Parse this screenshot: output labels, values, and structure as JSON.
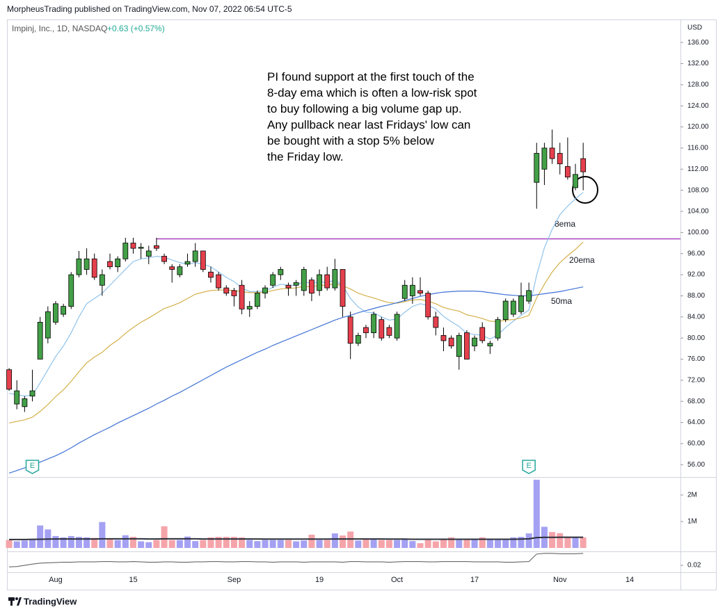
{
  "header": {
    "publisher": "MorpheusTrading published on TradingView.com, Nov 07, 2022 06:54 UTC-5"
  },
  "footer": {
    "brand": "TradingView"
  },
  "chart_data": {
    "type": "candlestick",
    "symbol": "Impinj, Inc., 1D, NASDAQ",
    "change": "+0.63 (+0.57%)",
    "change_color": "#22ab94",
    "currency": "USD",
    "annotation": [
      "PI found support at the first touch of the",
      "8-day ema which is often a low-risk spot",
      "to buy following a big volume gap up.",
      "Any pullback near last Fridays' low can",
      "be bought with a stop 5% below",
      "the Friday low."
    ],
    "categories": [
      null,
      null,
      null,
      null,
      null,
      null,
      "Aug",
      null,
      null,
      null,
      null,
      null,
      null,
      null,
      null,
      null,
      "15",
      null,
      null,
      null,
      null,
      null,
      null,
      null,
      null,
      null,
      null,
      null,
      null,
      "Sep",
      null,
      null,
      null,
      null,
      null,
      null,
      null,
      null,
      null,
      null,
      "19",
      null,
      null,
      null,
      null,
      null,
      null,
      null,
      null,
      null,
      "Oct",
      null,
      null,
      null,
      null,
      null,
      null,
      null,
      null,
      null,
      "17",
      null,
      null,
      null,
      null,
      null,
      null,
      null,
      null,
      null,
      null,
      "Nov",
      null,
      null,
      null,
      null,
      null,
      null,
      null,
      null,
      "14",
      null,
      null,
      null,
      null,
      null,
      null
    ],
    "open": [
      74,
      67.5,
      67,
      69,
      76,
      80,
      83,
      84.5,
      86,
      92,
      93,
      95,
      90,
      94.5,
      93.5,
      95,
      98,
      97,
      95.5,
      97.5,
      95.5,
      93.5,
      92,
      94,
      94.5,
      96.5,
      92.5,
      92,
      89.5,
      89,
      90,
      85.5,
      86,
      88.5,
      90,
      92,
      90,
      90,
      89,
      91,
      89,
      92,
      89.5,
      93,
      84,
      79,
      82,
      81,
      83.5,
      82,
      80,
      87.5,
      88,
      89,
      88.5,
      84,
      80.5,
      80,
      76.5,
      81,
      78.5,
      82,
      78.5,
      80,
      83.5,
      84.5,
      85,
      87,
      109.5,
      112,
      116,
      115,
      112.5,
      108.5,
      114,
      null,
      null,
      null,
      null,
      null,
      null,
      null,
      null,
      null,
      null,
      null,
      null
    ],
    "high": [
      74.3,
      72,
      69,
      74,
      84,
      86,
      87,
      86.5,
      92.5,
      96.5,
      97,
      96,
      93,
      96,
      95.5,
      99,
      99,
      98,
      97.5,
      99,
      96,
      94,
      94,
      96,
      98,
      96.5,
      93.5,
      92.5,
      90,
      89.5,
      91,
      87,
      89,
      90,
      92.5,
      93.5,
      90.5,
      91,
      93.5,
      91.5,
      93,
      93.5,
      95,
      93,
      85,
      81,
      82.5,
      85,
      84,
      82.5,
      85,
      91,
      91.5,
      91.5,
      89,
      85,
      82,
      80.5,
      81,
      81.5,
      80.5,
      83,
      79.5,
      84,
      87.5,
      87.5,
      90.5,
      90.5,
      117,
      117,
      119.5,
      117,
      118,
      113,
      117,
      null,
      null,
      null,
      null,
      null,
      null,
      null,
      null,
      null,
      null,
      null,
      null
    ],
    "low": [
      70,
      66.5,
      66,
      68,
      76,
      79,
      82.5,
      84,
      85.5,
      91.5,
      92,
      91,
      88,
      93,
      92.5,
      94.5,
      96,
      95,
      94,
      96.5,
      94,
      90.5,
      91.5,
      93.5,
      93.5,
      92.5,
      90.5,
      89,
      88,
      86,
      84.5,
      84,
      85.5,
      87.5,
      89.5,
      91,
      88,
      88,
      88,
      87,
      88,
      89,
      89,
      84,
      76,
      78.5,
      80,
      80,
      79.5,
      80,
      79.5,
      87,
      86.5,
      88,
      83.5,
      80.5,
      77.5,
      78,
      74,
      76,
      77.5,
      79,
      77,
      79.5,
      83,
      84,
      84.5,
      86.5,
      104.5,
      109,
      113,
      111,
      110,
      108,
      108,
      null,
      null,
      null,
      null,
      null,
      null,
      null,
      null,
      null,
      null,
      null,
      null
    ],
    "close": [
      70.3,
      70,
      68.5,
      70,
      83,
      85,
      86.5,
      86,
      92,
      95,
      95,
      91.5,
      92,
      93.5,
      95,
      98,
      97,
      97.2,
      96.5,
      97,
      94.5,
      93,
      93.5,
      94.5,
      96.5,
      93,
      91.5,
      89.5,
      88.5,
      88,
      85.5,
      86,
      88.5,
      89.5,
      92,
      93,
      89.5,
      90.5,
      93,
      88.5,
      92,
      89.5,
      93,
      86,
      79,
      80.5,
      81,
      84.5,
      80,
      80.5,
      84.5,
      90,
      90,
      88.5,
      84,
      82,
      79.5,
      78.5,
      80.5,
      76,
      80,
      79.5,
      79,
      83.5,
      87,
      87,
      88,
      89,
      115,
      116,
      114,
      113,
      110.5,
      111,
      111.5,
      null,
      null,
      null,
      null,
      null,
      null,
      null,
      null,
      null,
      null,
      null,
      null
    ],
    "up_color": "#43a047",
    "down_color": "#e5404d",
    "ylim": [
      53.8,
      140.1
    ],
    "yticks": [
      {
        "value": 56,
        "label": "56.00"
      },
      {
        "value": 60,
        "label": "60.00"
      },
      {
        "value": 64,
        "label": "64.00"
      },
      {
        "value": 68,
        "label": "68.00"
      },
      {
        "value": 72,
        "label": "72.00"
      },
      {
        "value": 76,
        "label": "76.00"
      },
      {
        "value": 80,
        "label": "80.00"
      },
      {
        "value": 84,
        "label": "84.00"
      },
      {
        "value": 88,
        "label": "88.00"
      },
      {
        "value": 92,
        "label": "92.00"
      },
      {
        "value": 96,
        "label": "96.00"
      },
      {
        "value": 100,
        "label": "100.00"
      },
      {
        "value": 104,
        "label": "104.00"
      },
      {
        "value": 108,
        "label": "108.00"
      },
      {
        "value": 112,
        "label": "112.00"
      },
      {
        "value": 116,
        "label": "116.00"
      },
      {
        "value": 120,
        "label": "120.00"
      },
      {
        "value": 124,
        "label": "124.00"
      },
      {
        "value": 128,
        "label": "128.00"
      },
      {
        "value": 132,
        "label": "132.00"
      },
      {
        "value": 136,
        "label": "136.00"
      }
    ],
    "lines": [
      {
        "name": "8ema",
        "color": "#8fc3ec",
        "values": [
          69.5,
          69.3,
          69,
          69.2,
          71.5,
          74,
          76.5,
          78.5,
          81,
          84,
          86.5,
          87.5,
          88.5,
          90,
          91.5,
          93,
          94.5,
          95,
          95.2,
          95.5,
          95.3,
          94.8,
          94.3,
          94,
          94.3,
          94,
          93.5,
          92.5,
          91.5,
          90.7,
          89.5,
          88.8,
          88.8,
          89,
          89.6,
          90.2,
          90,
          90,
          90.7,
          90.3,
          90.7,
          90.5,
          91,
          89.9,
          87.5,
          85.9,
          84.9,
          84.8,
          84,
          83.4,
          83.6,
          84.9,
          86,
          86.5,
          86.2,
          85.5,
          84.1,
          83.1,
          82.2,
          80.9,
          80.7,
          80.5,
          79.8,
          80.6,
          82,
          83.2,
          84.3,
          85.3,
          91.9,
          97.1,
          100.6,
          103.4,
          105,
          106.4,
          107.6,
          null,
          null,
          null,
          null,
          null,
          null,
          null,
          null,
          null,
          null,
          null,
          null
        ]
      },
      {
        "name": "20ema",
        "color": "#d4b04a",
        "values": [
          63.9,
          64.2,
          64.5,
          65,
          66.1,
          67.4,
          68.9,
          70.2,
          71.8,
          73.6,
          75.3,
          76.4,
          77.3,
          78.6,
          79.6,
          80.9,
          82,
          83,
          83.8,
          84.7,
          85.6,
          86.1,
          86.7,
          87.5,
          88.3,
          88.7,
          89,
          89.1,
          89.1,
          89,
          88.8,
          88.6,
          88.6,
          88.7,
          89,
          89.3,
          89.4,
          89.5,
          89.8,
          89.7,
          90,
          90,
          90.3,
          89.9,
          89.3,
          88.5,
          88,
          87.6,
          87.1,
          86.7,
          86.6,
          86.9,
          87.2,
          87.3,
          87,
          86.5,
          85.8,
          85.4,
          85.1,
          84.4,
          84.1,
          83.7,
          83.2,
          83.1,
          83.4,
          83.5,
          83.8,
          84.3,
          87.6,
          90.2,
          92.5,
          94.3,
          95.6,
          96.8,
          98.2,
          null,
          null,
          null,
          null,
          null,
          null,
          null,
          null,
          null,
          null,
          null,
          null
        ]
      },
      {
        "name": "50ma",
        "color": "#3f72d6",
        "values": [
          54.4,
          54.9,
          55.4,
          55.9,
          56.5,
          57.1,
          57.7,
          58.4,
          59.2,
          60.1,
          60.9,
          61.7,
          62.4,
          63.1,
          63.9,
          64.6,
          65.3,
          66,
          66.7,
          67.5,
          68.2,
          69,
          69.7,
          70.5,
          71.3,
          72.1,
          72.9,
          73.7,
          74.5,
          75.2,
          75.9,
          76.6,
          77.3,
          77.9,
          78.6,
          79.2,
          79.8,
          80.4,
          81,
          81.6,
          82.2,
          82.8,
          83.4,
          83.9,
          84.3,
          84.8,
          85.2,
          85.6,
          86,
          86.3,
          86.7,
          87.1,
          87.5,
          87.9,
          88.2,
          88.5,
          88.7,
          88.8,
          88.9,
          88.9,
          88.9,
          88.8,
          88.6,
          88.4,
          88.2,
          88.1,
          88,
          88,
          88.2,
          88.4,
          88.6,
          88.8,
          89.1,
          89.4,
          89.7,
          null,
          null,
          null,
          null,
          null,
          null,
          null,
          null,
          null,
          null,
          null,
          null
        ]
      }
    ],
    "level": {
      "value": 98.8,
      "color": "#a840c0",
      "start": 19
    },
    "earnings": {
      "label": "E",
      "at": [
        3,
        67
      ]
    },
    "volume": {
      "up_color": "#a4a1f3",
      "down_color": "#f5a4aa",
      "ylim": [
        -105000,
        2630000
      ],
      "yticks": [
        {
          "value": 1000000,
          "label": "1M"
        },
        {
          "value": 2000000,
          "label": "2M"
        }
      ],
      "values": [
        300000,
        250000,
        280000,
        300000,
        850000,
        700000,
        450000,
        400000,
        450000,
        420000,
        400000,
        380000,
        980000,
        350000,
        300000,
        480000,
        420000,
        250000,
        220000,
        300000,
        820000,
        300000,
        300000,
        430000,
        260000,
        300000,
        400000,
        420000,
        420000,
        420000,
        400000,
        300000,
        260000,
        300000,
        300000,
        300000,
        300000,
        250000,
        280000,
        500000,
        300000,
        300000,
        550000,
        470000,
        620000,
        280000,
        350000,
        350000,
        300000,
        300000,
        300000,
        330000,
        260000,
        180000,
        300000,
        250000,
        330000,
        400000,
        300000,
        350000,
        350000,
        400000,
        350000,
        300000,
        300000,
        400000,
        420000,
        550000,
        2580000,
        800000,
        600000,
        560000,
        430000,
        400000,
        400000,
        null,
        null,
        null,
        null,
        null,
        null,
        null,
        null,
        null,
        null,
        null,
        null
      ],
      "average": {
        "color": "#2a2e39",
        "values": [
          320000,
          320000,
          320000,
          325000,
          330000,
          335000,
          340000,
          340000,
          340000,
          340000,
          340000,
          340000,
          345000,
          345000,
          345000,
          345000,
          345000,
          345000,
          340000,
          340000,
          345000,
          345000,
          345000,
          345000,
          345000,
          340000,
          340000,
          340000,
          340000,
          340000,
          340000,
          340000,
          340000,
          335000,
          335000,
          335000,
          335000,
          335000,
          335000,
          335000,
          335000,
          335000,
          340000,
          340000,
          340000,
          340000,
          340000,
          340000,
          340000,
          335000,
          335000,
          335000,
          330000,
          330000,
          330000,
          330000,
          330000,
          330000,
          330000,
          330000,
          330000,
          330000,
          330000,
          330000,
          330000,
          330000,
          335000,
          345000,
          390000,
          400000,
          400000,
          405000,
          405000,
          405000,
          405000,
          null,
          null,
          null,
          null,
          null,
          null,
          null,
          null,
          null,
          null,
          null,
          null
        ]
      }
    },
    "indicator": {
      "color": "#555555",
      "ylim": [
        0,
        0.06
      ],
      "yticks": [
        0.02
      ],
      "values": [
        0.015,
        0.016,
        0.02,
        0.024,
        0.027,
        0.028,
        0.029,
        0.03,
        0.03,
        0.031,
        0.031,
        0.031,
        0.032,
        0.032,
        0.031,
        0.031,
        0.032,
        0.031,
        0.03,
        0.03,
        0.031,
        0.031,
        0.03,
        0.03,
        0.031,
        0.031,
        0.032,
        0.032,
        0.031,
        0.031,
        0.032,
        0.032,
        0.031,
        0.031,
        0.03,
        0.031,
        0.031,
        0.031,
        0.03,
        0.031,
        0.031,
        0.031,
        0.031,
        0.03,
        0.032,
        0.032,
        0.031,
        0.031,
        0.031,
        0.03,
        0.031,
        0.032,
        0.032,
        0.032,
        0.031,
        0.031,
        0.032,
        0.032,
        0.032,
        0.032,
        0.031,
        0.031,
        0.031,
        0.031,
        0.03,
        0.03,
        0.031,
        0.032,
        0.056,
        0.058,
        0.058,
        0.057,
        0.057,
        0.057,
        0.058,
        null,
        null,
        null,
        null,
        null,
        null,
        null,
        null,
        null,
        null,
        null,
        null
      ]
    }
  }
}
